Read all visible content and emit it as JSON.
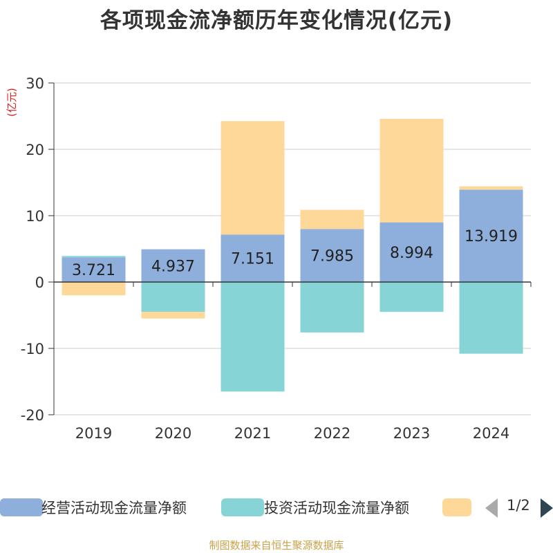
{
  "title": "各项现金流净额历年变化情况(亿元)",
  "source": "制图数据来自恒生聚源数据库",
  "legend": {
    "pager": "1/2"
  },
  "chart_data": {
    "type": "bar",
    "stacked": true,
    "title": "各项现金流净额历年变化情况(亿元)",
    "ylabel": "(亿元)",
    "xlabel": "",
    "ylim": [
      -20,
      30
    ],
    "yticks": [
      30,
      20,
      10,
      0,
      -10,
      -20
    ],
    "grid": true,
    "legend_position": "bottom",
    "categories": [
      "2019",
      "2020",
      "2021",
      "2022",
      "2023",
      "2024"
    ],
    "series": [
      {
        "name": "经营活动现金流量净额",
        "color": "#8eaedb",
        "values": [
          3.721,
          4.937,
          7.151,
          7.985,
          8.994,
          13.919
        ],
        "labels": [
          "3.721",
          "4.937",
          "7.151",
          "7.985",
          "8.994",
          "13.919"
        ]
      },
      {
        "name": "投资活动现金流量净额",
        "color": "#86d4d6",
        "values": [
          0.2,
          -4.5,
          -16.5,
          -7.6,
          -4.5,
          -10.8
        ]
      },
      {
        "name": "",
        "color": "#fdd898",
        "values": [
          -2.0,
          -1.0,
          17.1,
          2.9,
          15.6,
          0.5
        ]
      }
    ]
  }
}
